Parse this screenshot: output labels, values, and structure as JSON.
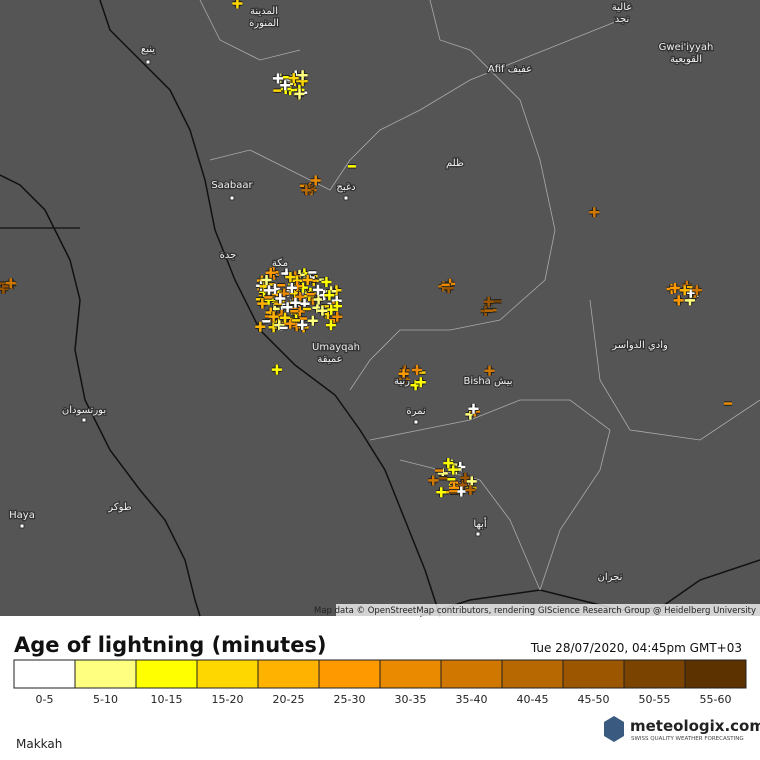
{
  "map": {
    "places": [
      "المدينة",
      "المنورة",
      "ينبع",
      "Afif عفيف",
      "Gwei'iyyah",
      "القويعية",
      "عالية",
      "نجد",
      "ظلم",
      "Saabaar",
      "دغبج",
      "جدة",
      "مكة",
      "Umayqah",
      "عميقة",
      "وادي الدواسر",
      "Bisha بيش",
      "رنية",
      "نمرة",
      "بورتسودان",
      "Haya",
      "طوكر",
      "أبها",
      "نجران"
    ],
    "attribution": "Map data © OpenStreetMap contributors, rendering GIScience Research Group @ Heidelberg University"
  },
  "legend": {
    "title": "Age of lightning (minutes)",
    "timestamp": "Tue 28/07/2020, 04:45pm GMT+03",
    "items": [
      {
        "label": "0-5",
        "color": "#ffffff"
      },
      {
        "label": "5-10",
        "color": "#ffff80"
      },
      {
        "label": "10-15",
        "color": "#ffff00"
      },
      {
        "label": "15-20",
        "color": "#ffd700"
      },
      {
        "label": "20-25",
        "color": "#ffb300"
      },
      {
        "label": "25-30",
        "color": "#ff9900"
      },
      {
        "label": "30-35",
        "color": "#ea8a00"
      },
      {
        "label": "35-40",
        "color": "#d07700"
      },
      {
        "label": "40-45",
        "color": "#b86800"
      },
      {
        "label": "45-50",
        "color": "#9c5600"
      },
      {
        "label": "50-55",
        "color": "#7a4300"
      },
      {
        "label": "55-60",
        "color": "#5c3300"
      }
    ]
  },
  "footer": {
    "region": "Makkah",
    "brand": "meteologix.com",
    "tagline": "SWISS QUALITY WEATHER FORECASTING"
  }
}
